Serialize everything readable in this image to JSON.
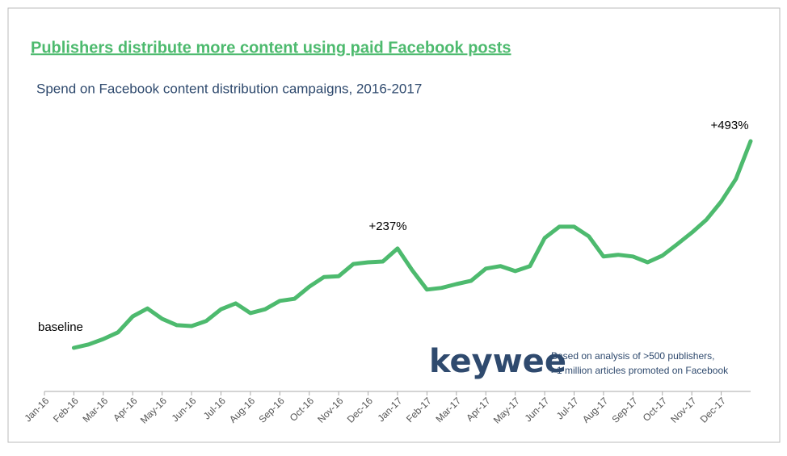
{
  "chart_data": {
    "type": "line",
    "title": "Publishers distribute more content using paid Facebook posts",
    "subtitle": "Spend on Facebook content distribution campaigns, 2016-2017",
    "categories": [
      "Jan-16",
      null,
      "Feb-16",
      null,
      "Mar-16",
      null,
      "Apr-16",
      null,
      "May-16",
      null,
      "Jun-16",
      null,
      "Jul-16",
      null,
      "Aug-16",
      null,
      "Sep-16",
      null,
      "Oct-16",
      null,
      "Nov-16",
      null,
      "Dec-16",
      null,
      "Jan-17",
      null,
      "Feb-17",
      null,
      "Mar-17",
      null,
      "Apr-17",
      null,
      "May-17",
      null,
      "Jun-17",
      null,
      "Jul-17",
      null,
      "Aug-17",
      null,
      "Sep-17",
      null,
      "Oct-17",
      null,
      "Nov-17",
      null,
      "Dec-17",
      null,
      null
    ],
    "series": [
      {
        "name": "Spend",
        "color": "#4dba6e",
        "values": [
          null,
          null,
          0,
          8,
          21,
          37,
          75,
          94,
          69,
          54,
          52,
          64,
          92,
          106,
          83,
          92,
          112,
          117,
          146,
          169,
          171,
          200,
          204,
          206,
          237,
          185,
          139,
          143,
          152,
          160,
          189,
          195,
          183,
          195,
          262,
          289,
          289,
          266,
          218,
          222,
          218,
          204,
          220,
          247,
          275,
          306,
          349,
          403,
          493
        ]
      }
    ],
    "ylim": [
      -104,
      541
    ],
    "annotations": [
      "baseline",
      "+237%",
      "+493%"
    ],
    "logo": "keywee",
    "note": [
      "Based on analysis of >500 publishers,",
      ">1 million articles promoted on Facebook"
    ]
  }
}
